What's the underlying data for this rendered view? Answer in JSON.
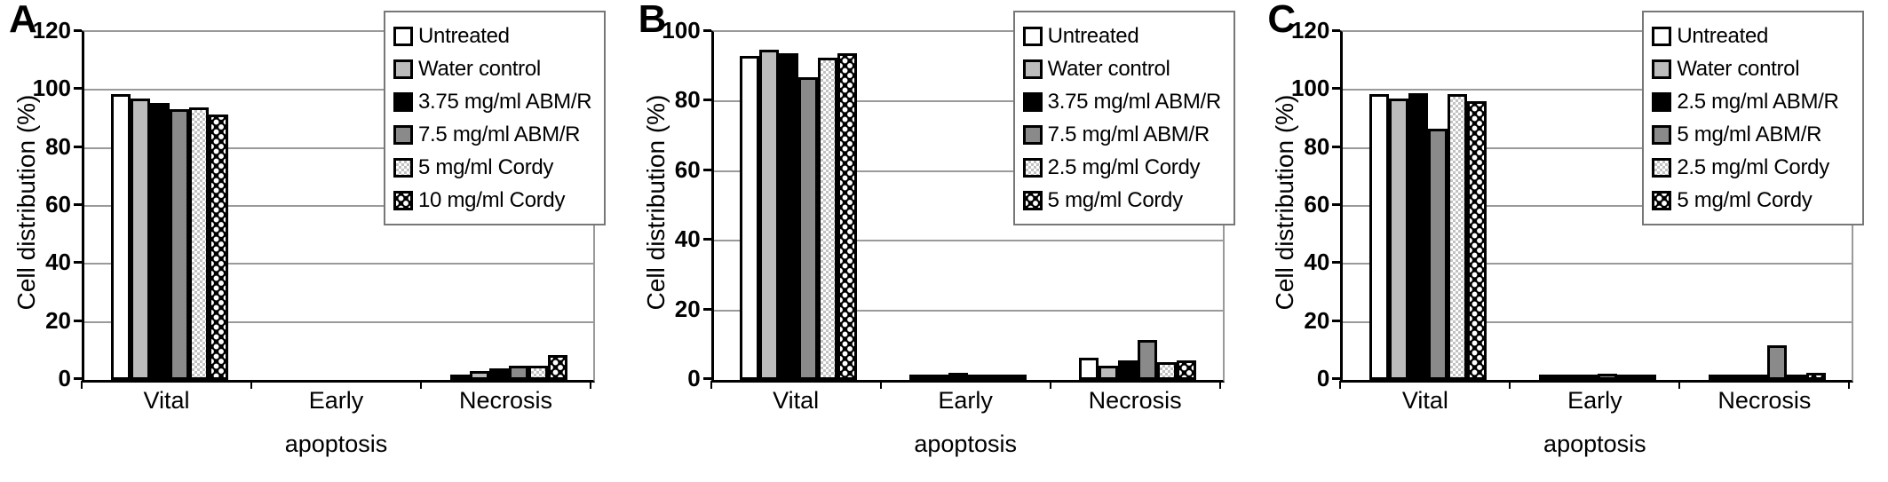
{
  "figure": {
    "y_axis_label": "Cell distribution (%)",
    "x_axis_label": "apoptosis",
    "categories": [
      "Vital",
      "Early",
      "Necrosis"
    ]
  },
  "chart_data": [
    {
      "type": "bar",
      "panel": "A",
      "title": "",
      "ylabel": "Cell distribution (%)",
      "xlabel": "apoptosis",
      "categories": [
        "Vital",
        "Early",
        "Necrosis"
      ],
      "ylim": [
        0,
        120
      ],
      "ytick_step": 20,
      "grid": true,
      "legend_position": "top-right",
      "series": [
        {
          "name": "Untreated",
          "swatch": "white",
          "values": [
            98.5,
            0,
            1.5
          ]
        },
        {
          "name": "Water control",
          "swatch": "light-gray",
          "values": [
            97,
            0,
            3
          ]
        },
        {
          "name": "3.75 mg/ml ABM/R",
          "swatch": "black",
          "values": [
            95.5,
            0,
            4
          ]
        },
        {
          "name": "7.5 mg/ml ABM/R",
          "swatch": "dark-gray",
          "values": [
            93.5,
            0,
            5
          ]
        },
        {
          "name": "5 mg/ml Cordy",
          "swatch": "light-dots",
          "values": [
            94,
            0,
            5
          ]
        },
        {
          "name": "10 mg/ml Cordy",
          "swatch": "dark-dots",
          "values": [
            91.5,
            0,
            8.5
          ]
        }
      ]
    },
    {
      "type": "bar",
      "panel": "B",
      "title": "",
      "ylabel": "Cell distribution (%)",
      "xlabel": "apoptosis",
      "categories": [
        "Vital",
        "Early",
        "Necrosis"
      ],
      "ylim": [
        0,
        100
      ],
      "ytick_step": 20,
      "grid": true,
      "legend_position": "top-right",
      "series": [
        {
          "name": "Untreated",
          "swatch": "white",
          "values": [
            93,
            1,
            6.5
          ]
        },
        {
          "name": "Water control",
          "swatch": "light-gray",
          "values": [
            95,
            1,
            4
          ]
        },
        {
          "name": "3.75 mg/ml ABM/R",
          "swatch": "black",
          "values": [
            94,
            2,
            5.5
          ]
        },
        {
          "name": "7.5 mg/ml ABM/R",
          "swatch": "dark-gray",
          "values": [
            87,
            1.5,
            11.5
          ]
        },
        {
          "name": "2.5 mg/ml Cordy",
          "swatch": "light-dots",
          "values": [
            92.5,
            1.5,
            5
          ]
        },
        {
          "name": "5 mg/ml Cordy",
          "swatch": "dark-dots",
          "values": [
            94,
            1.5,
            5.5
          ]
        }
      ]
    },
    {
      "type": "bar",
      "panel": "C",
      "title": "",
      "ylabel": "Cell distribution (%)",
      "xlabel": "apoptosis",
      "categories": [
        "Vital",
        "Early",
        "Necrosis"
      ],
      "ylim": [
        0,
        120
      ],
      "ytick_step": 20,
      "grid": true,
      "legend_position": "top-right",
      "series": [
        {
          "name": "Untreated",
          "swatch": "white",
          "values": [
            98.5,
            1,
            1
          ]
        },
        {
          "name": "Water control",
          "swatch": "light-gray",
          "values": [
            97,
            1,
            1.5
          ]
        },
        {
          "name": "2.5 mg/ml ABM/R",
          "swatch": "black",
          "values": [
            99,
            1,
            1
          ]
        },
        {
          "name": "5 mg/ml ABM/R",
          "swatch": "dark-gray",
          "values": [
            86.5,
            2,
            12
          ]
        },
        {
          "name": "2.5 mg/ml Cordy",
          "swatch": "light-dots",
          "values": [
            98.5,
            1,
            1
          ]
        },
        {
          "name": "5 mg/ml Cordy",
          "swatch": "dark-dots",
          "values": [
            96,
            1.5,
            2.5
          ]
        }
      ]
    }
  ]
}
